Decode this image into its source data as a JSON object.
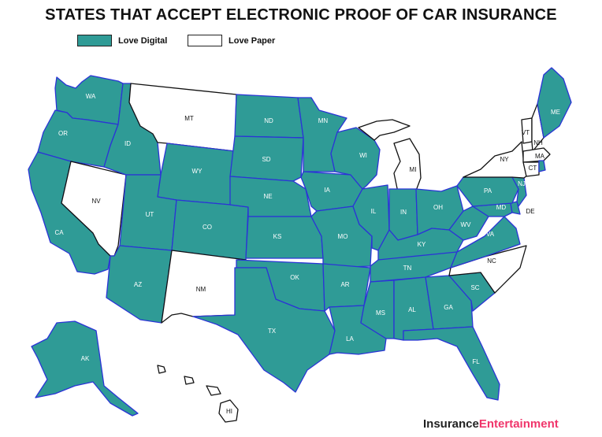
{
  "title": "STATES THAT ACCEPT ELECTRONIC PROOF OF CAR INSURANCE",
  "legend": {
    "digital": {
      "label": "Love Digital",
      "color": "#2f9b96"
    },
    "paper": {
      "label": "Love Paper",
      "color": "#ffffff"
    }
  },
  "colors": {
    "border_digital": "#2b34d6",
    "border_paper": "#111111",
    "brand_accent": "#f0356b"
  },
  "states": {
    "WA": {
      "label": "WA",
      "status": "digital"
    },
    "OR": {
      "label": "OR",
      "status": "digital"
    },
    "CA": {
      "label": "CA",
      "status": "digital"
    },
    "NV": {
      "label": "NV",
      "status": "paper"
    },
    "ID": {
      "label": "ID",
      "status": "digital"
    },
    "MT": {
      "label": "MT",
      "status": "paper"
    },
    "WY": {
      "label": "WY",
      "status": "digital"
    },
    "UT": {
      "label": "UT",
      "status": "digital"
    },
    "AZ": {
      "label": "AZ",
      "status": "digital"
    },
    "CO": {
      "label": "CO",
      "status": "digital"
    },
    "NM": {
      "label": "NM",
      "status": "paper"
    },
    "ND": {
      "label": "ND",
      "status": "digital"
    },
    "SD": {
      "label": "SD",
      "status": "digital"
    },
    "NE": {
      "label": "NE",
      "status": "digital"
    },
    "KS": {
      "label": "KS",
      "status": "digital"
    },
    "OK": {
      "label": "OK",
      "status": "digital"
    },
    "TX": {
      "label": "TX",
      "status": "digital"
    },
    "MN": {
      "label": "MN",
      "status": "digital"
    },
    "IA": {
      "label": "IA",
      "status": "digital"
    },
    "MO": {
      "label": "MO",
      "status": "digital"
    },
    "AR": {
      "label": "AR",
      "status": "digital"
    },
    "LA": {
      "label": "LA",
      "status": "digital"
    },
    "WI": {
      "label": "WI",
      "status": "digital"
    },
    "IL": {
      "label": "IL",
      "status": "digital"
    },
    "MI": {
      "label": "MI",
      "status": "paper"
    },
    "IN": {
      "label": "IN",
      "status": "digital"
    },
    "OH": {
      "label": "OH",
      "status": "digital"
    },
    "KY": {
      "label": "KY",
      "status": "digital"
    },
    "TN": {
      "label": "TN",
      "status": "digital"
    },
    "MS": {
      "label": "MS",
      "status": "digital"
    },
    "AL": {
      "label": "AL",
      "status": "digital"
    },
    "GA": {
      "label": "GA",
      "status": "digital"
    },
    "FL": {
      "label": "FL",
      "status": "digital"
    },
    "SC": {
      "label": "SC",
      "status": "digital"
    },
    "NC": {
      "label": "NC",
      "status": "paper"
    },
    "VA": {
      "label": "VA",
      "status": "digital"
    },
    "WV": {
      "label": "WV",
      "status": "digital"
    },
    "MD": {
      "label": "MD",
      "status": "digital"
    },
    "DE": {
      "label": "DE",
      "status": "digital"
    },
    "PA": {
      "label": "PA",
      "status": "digital"
    },
    "NJ": {
      "label": "NJ",
      "status": "digital"
    },
    "NY": {
      "label": "NY",
      "status": "paper"
    },
    "CT": {
      "label": "CT",
      "status": "paper"
    },
    "RI": {
      "label": "",
      "status": "digital"
    },
    "MA": {
      "label": "MA",
      "status": "paper"
    },
    "VT": {
      "label": "VT",
      "status": "paper"
    },
    "NH": {
      "label": "NH",
      "status": "paper"
    },
    "ME": {
      "label": "ME",
      "status": "digital"
    },
    "AK": {
      "label": "AK",
      "status": "digital"
    },
    "HI": {
      "label": "HI",
      "status": "paper"
    }
  },
  "brand": {
    "part1": "Insurance",
    "part2": "Entertainment"
  }
}
